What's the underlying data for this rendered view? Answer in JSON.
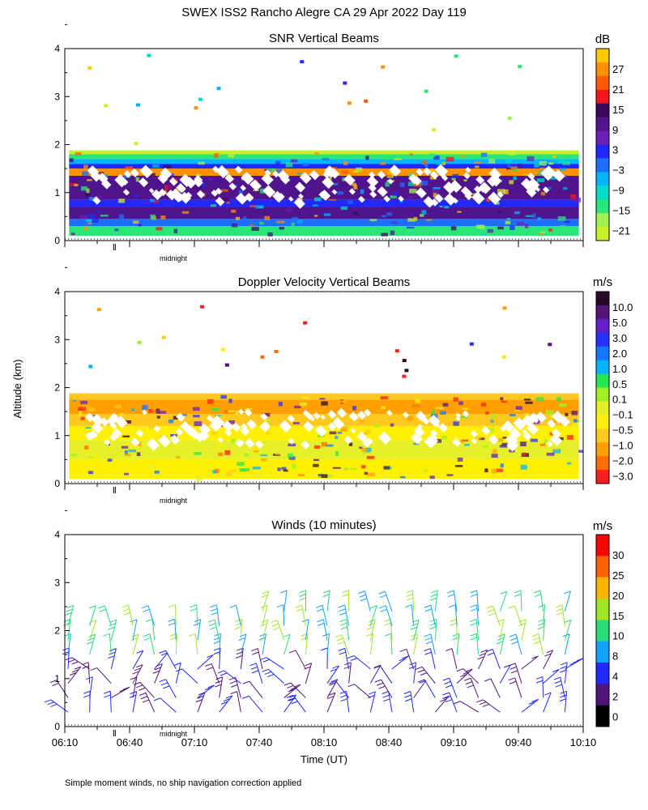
{
  "title": "SWEX ISS2 Rancho Alegre CA  29 Apr 2022 Day 119",
  "ylabel": "Altitude (km)",
  "xlabel": "Time (UT)",
  "footnote": "Simple moment winds, no ship navigation correction applied",
  "midnight_label": "midnight",
  "midnight_time_min": 380,
  "x_range_min": [
    370,
    610
  ],
  "x_ticks": [
    {
      "t": 370,
      "label": "06:10"
    },
    {
      "t": 400,
      "label": "06:40"
    },
    {
      "t": 430,
      "label": "07:10"
    },
    {
      "t": 460,
      "label": "07:40"
    },
    {
      "t": 490,
      "label": "08:10"
    },
    {
      "t": 520,
      "label": "08:40"
    },
    {
      "t": 550,
      "label": "09:10"
    },
    {
      "t": 580,
      "label": "09:40"
    },
    {
      "t": 610,
      "label": "10:10"
    }
  ],
  "y_ticks": [
    0,
    1,
    2,
    3,
    4
  ],
  "chart_data": [
    {
      "type": "heatmap",
      "title": "SNR Vertical Beams",
      "ylabel": "Altitude (km)",
      "ylim": [
        0,
        4
      ],
      "colorbar_unit": "dB",
      "colorbar_labels": [
        "27",
        "21",
        "15",
        "9",
        "3",
        "−3",
        "−9",
        "−15",
        "−21"
      ],
      "colorbar_colors": [
        "#ffc800",
        "#ff9000",
        "#ff5a00",
        "#f01818",
        "#3c0a5a",
        "#50148c",
        "#6a20b4",
        "#1e28ff",
        "#1e6eff",
        "#00b4ff",
        "#00dcc8",
        "#28e678",
        "#a0f050",
        "#c8f028"
      ],
      "layers": [
        {
          "from_km": 0.1,
          "to_km": 0.3,
          "color": "#28e678"
        },
        {
          "from_km": 0.3,
          "to_km": 0.45,
          "color": "#1e6eff"
        },
        {
          "from_km": 0.45,
          "to_km": 0.7,
          "color": "#50148c"
        },
        {
          "from_km": 0.7,
          "to_km": 0.85,
          "color": "#1e28ff"
        },
        {
          "from_km": 0.85,
          "to_km": 1.35,
          "color": "#50148c"
        },
        {
          "from_km": 1.35,
          "to_km": 1.5,
          "color": "#ff9000"
        },
        {
          "from_km": 1.5,
          "to_km": 1.6,
          "color": "#1e28ff"
        },
        {
          "from_km": 1.6,
          "to_km": 1.7,
          "color": "#00b4ff"
        },
        {
          "from_km": 1.7,
          "to_km": 1.8,
          "color": "#28e678"
        },
        {
          "from_km": 1.8,
          "to_km": 1.88,
          "color": "#c8f028"
        }
      ]
    },
    {
      "type": "heatmap",
      "title": "Doppler Velocity Vertical Beams",
      "ylabel": "Altitude (km)",
      "ylim": [
        0,
        4
      ],
      "colorbar_unit": "m/s",
      "colorbar_labels": [
        "10.0",
        "5.0",
        "3.0",
        "2.0",
        "1.0",
        "0.5",
        "0.1",
        "−0.1",
        "−0.5",
        "−1.0",
        "−2.0",
        "−3.0"
      ],
      "colorbar_colors": [
        "#280a28",
        "#50147a",
        "#6420c8",
        "#2832ff",
        "#1478ff",
        "#00b4ff",
        "#28e650",
        "#a0f028",
        "#e6f028",
        "#fff000",
        "#ffc81e",
        "#ffa000",
        "#ff6e00",
        "#ff1e1e"
      ],
      "layers": [
        {
          "from_km": 0.1,
          "to_km": 0.5,
          "color": "#fff000"
        },
        {
          "from_km": 0.5,
          "to_km": 0.9,
          "color": "#e6f028"
        },
        {
          "from_km": 0.9,
          "to_km": 1.2,
          "color": "#fff000"
        },
        {
          "from_km": 1.2,
          "to_km": 1.45,
          "color": "#ffc81e"
        },
        {
          "from_km": 1.45,
          "to_km": 1.75,
          "color": "#ffa000"
        },
        {
          "from_km": 1.75,
          "to_km": 1.88,
          "color": "#ffc81e"
        }
      ]
    },
    {
      "type": "scatter",
      "title": "Winds (10 minutes)",
      "ylabel": "Altitude (km)",
      "ylim": [
        0,
        4
      ],
      "colorbar_unit": "m/s",
      "colorbar_labels": [
        "30",
        "25",
        "20",
        "15",
        "10",
        "8",
        "4",
        "2",
        "0"
      ],
      "colorbar_colors": [
        "#ff0000",
        "#ff6400",
        "#ffb400",
        "#a0e628",
        "#28dc78",
        "#14a0ff",
        "#1e28ff",
        "#50147a",
        "#000000"
      ],
      "times_min": [
        370,
        380,
        390,
        400,
        410,
        420,
        430,
        440,
        450,
        460,
        470,
        480,
        490,
        500,
        510,
        520,
        530,
        540,
        550,
        560,
        570,
        580,
        590,
        600
      ],
      "altitudes_km": [
        0.3,
        0.6,
        0.9,
        1.2,
        1.5,
        1.8,
        2.1
      ]
    }
  ]
}
